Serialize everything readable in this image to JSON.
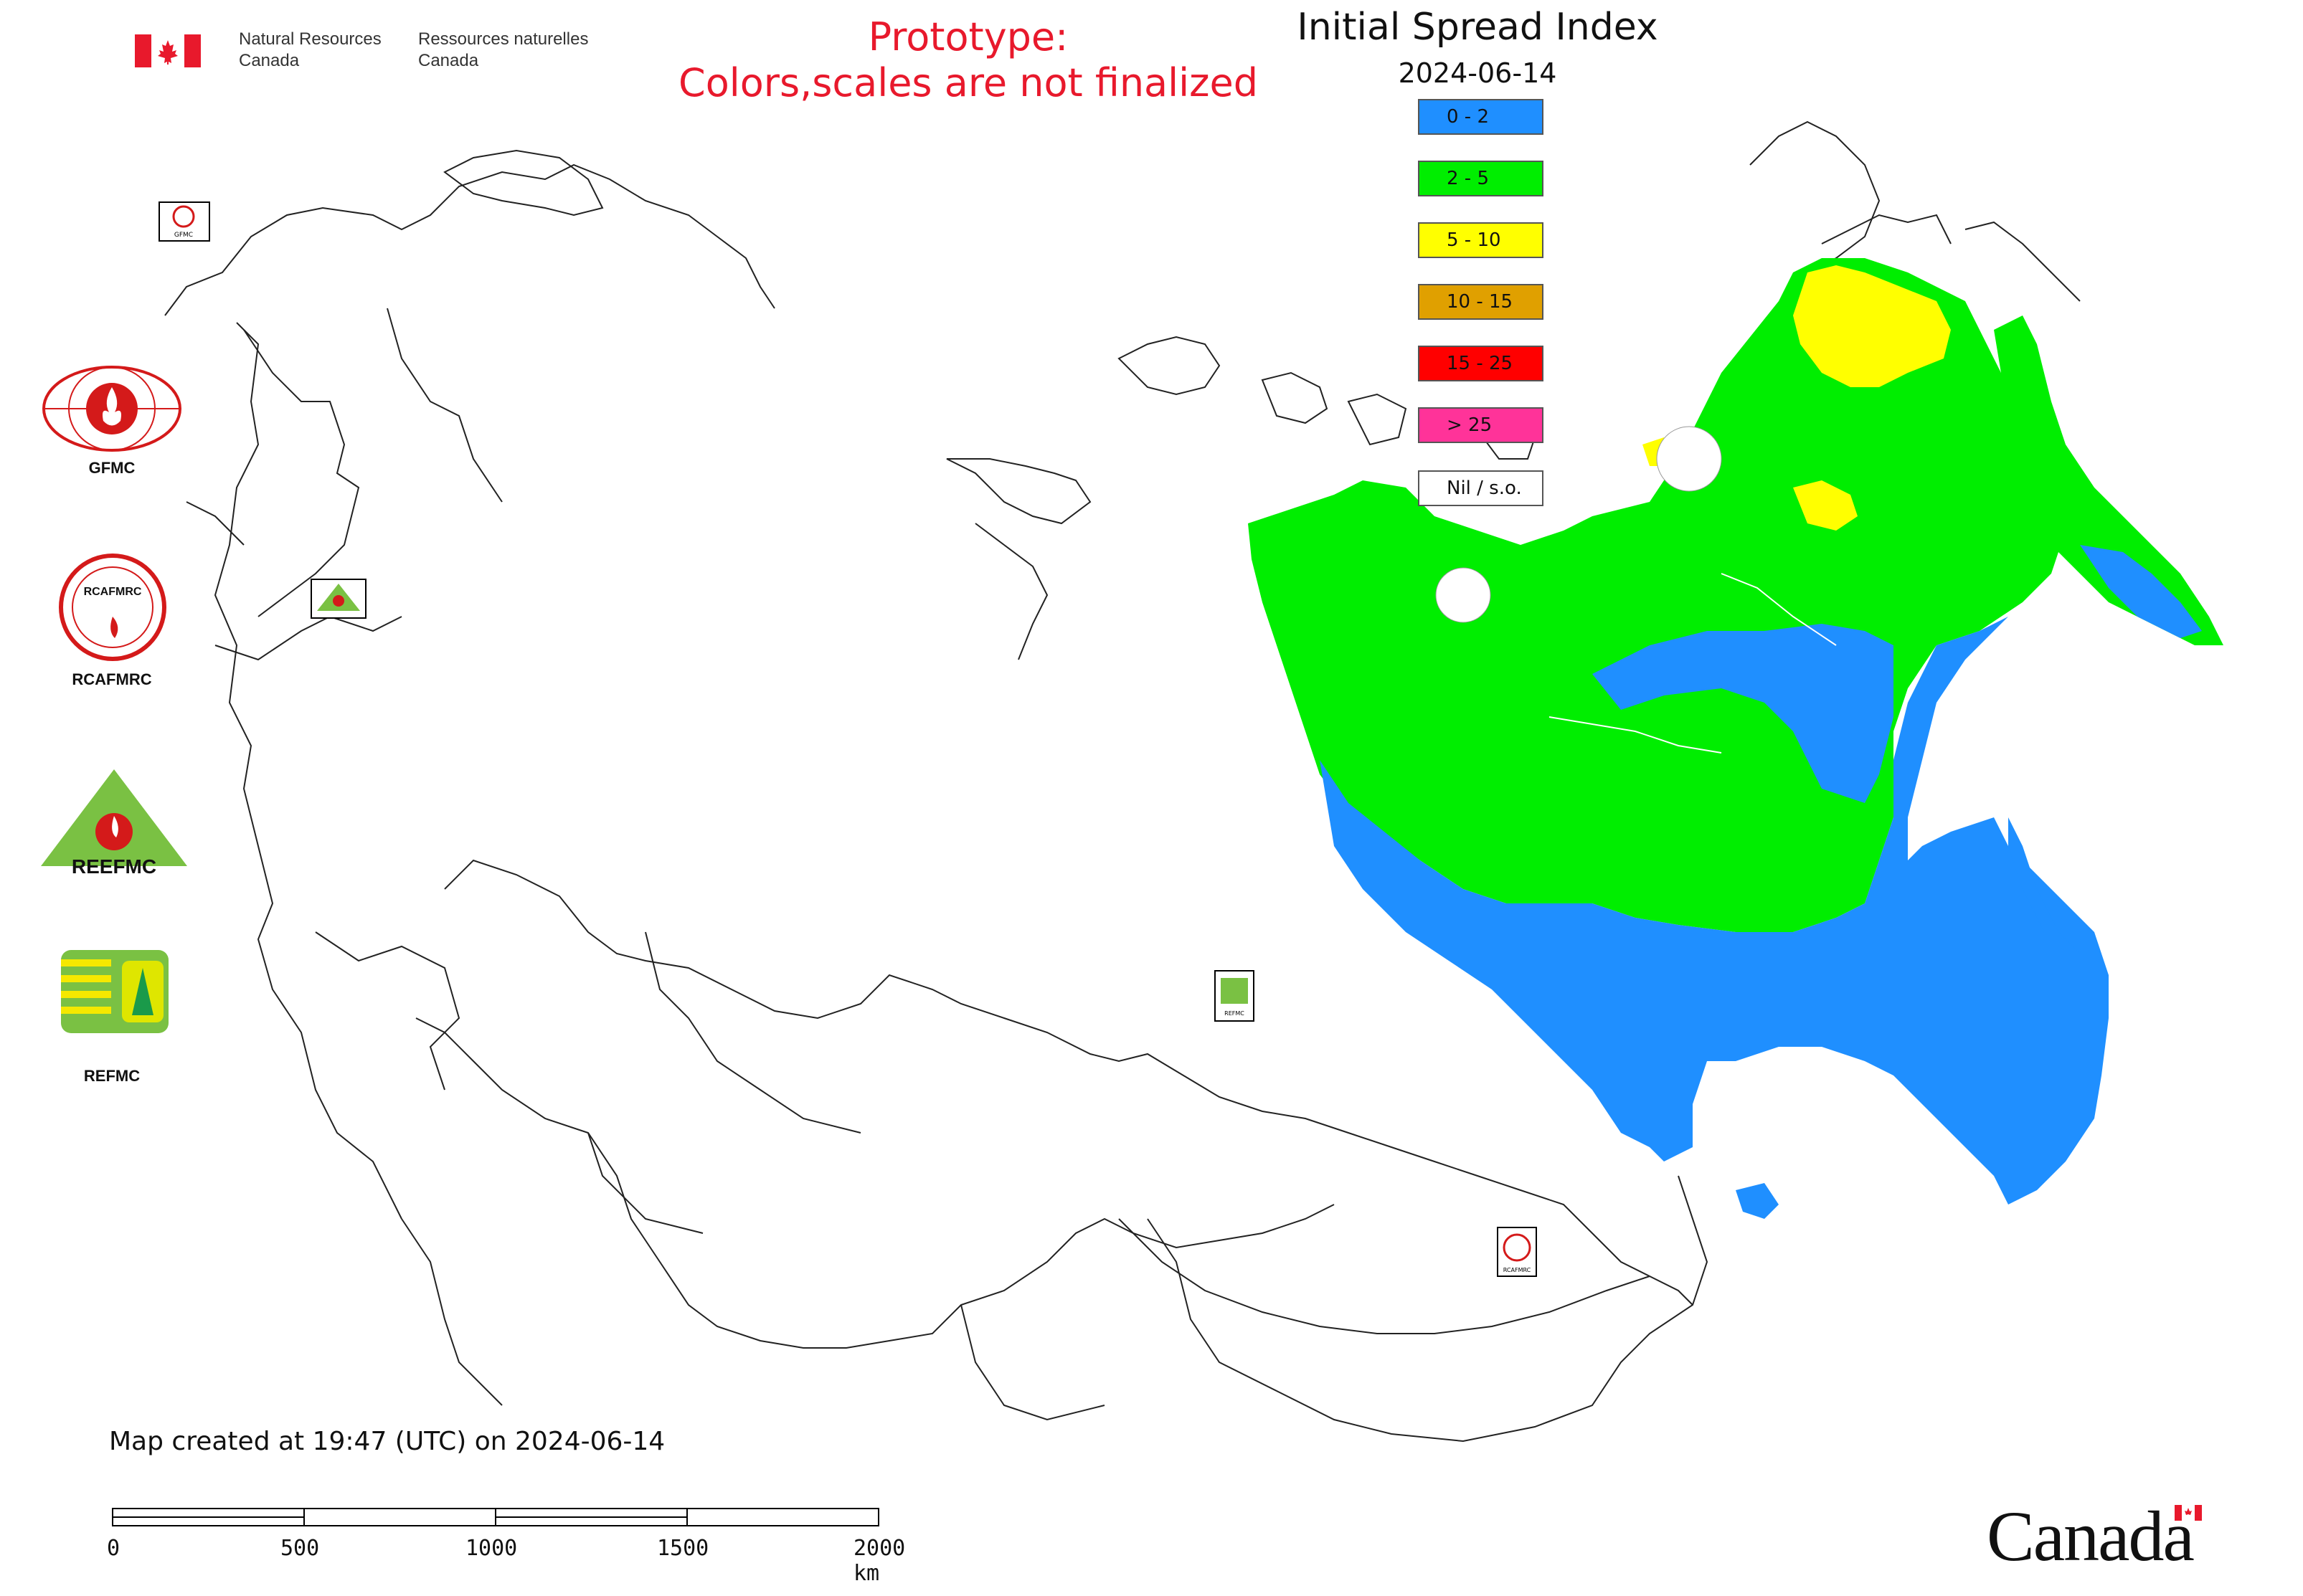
{
  "header": {
    "dept_en_line1": "Natural Resources",
    "dept_en_line2": "Canada",
    "dept_fr_line1": "Ressources naturelles",
    "dept_fr_line2": "Canada",
    "prototype_line1": "Prototype:",
    "prototype_line2": "Colors,scales are not finalized"
  },
  "legend": {
    "title": "Initial Spread Index",
    "date": "2024-06-14",
    "items": [
      {
        "label": "0 - 2",
        "color": "#1f8fff"
      },
      {
        "label": "2 - 5",
        "color": "#00ee00"
      },
      {
        "label": "5 - 10",
        "color": "#ffff00"
      },
      {
        "label": "10 - 15",
        "color": "#e0a000"
      },
      {
        "label": "15 - 25",
        "color": "#ff0000"
      },
      {
        "label": "> 25",
        "color": "#ff3399"
      },
      {
        "label": "Nil / s.o.",
        "color": "#ffffff"
      }
    ]
  },
  "side_logos": [
    {
      "label": "GFMC",
      "icon": "gfmc-logo"
    },
    {
      "label": "RCAFMRC",
      "icon": "rcafmrc-logo"
    },
    {
      "label": "",
      "icon": "reefmc-logo",
      "text": "REEFMC"
    },
    {
      "label": "REFMC",
      "icon": "refmc-logo"
    }
  ],
  "map_logos": {
    "gfmc_small": "GFMC",
    "reefmc_small": "REEFMC",
    "refmc_small": "REFMC",
    "rcafmrc_small": "RCAFMRC"
  },
  "footer": {
    "map_created": "Map created at 19:47 (UTC) on 2024-06-14",
    "scale_labels": [
      "0",
      "500",
      "1000",
      "1500",
      "2000 km"
    ],
    "wordmark": "Canada"
  }
}
